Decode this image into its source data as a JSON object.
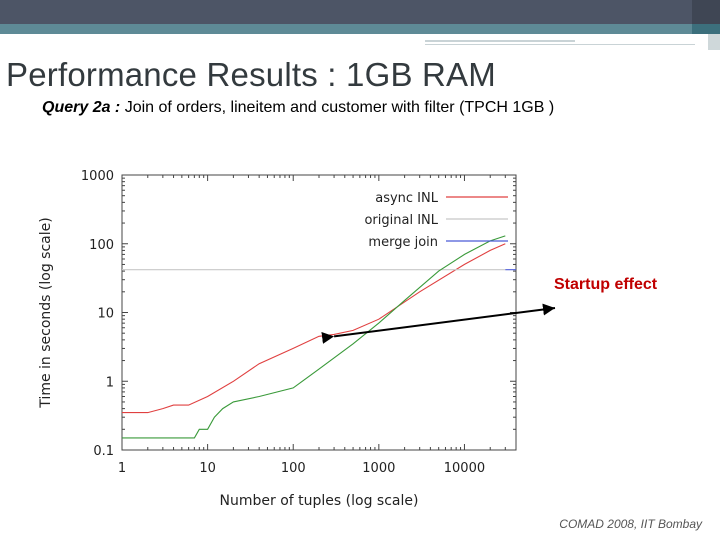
{
  "slide": {
    "title": "Performance Results : 1GB RAM",
    "subtitle_query": "Query 2a :",
    "subtitle_text": " Join of orders, lineitem and customer with filter  (TPCH 1GB )",
    "annotation": "Startup effect",
    "footer": "COMAD 2008, IIT Bombay",
    "colors": {
      "header_dark": "#4d5566",
      "header_teal": "#5e8a96",
      "annotation": "#c00000"
    }
  },
  "chart_data": {
    "type": "line",
    "title": "",
    "xlabel": "Number of tuples (log scale)",
    "ylabel": "Time in seconds (log scale)",
    "xscale": "log",
    "yscale": "log",
    "xlim": [
      1,
      40000
    ],
    "ylim": [
      0.1,
      1000
    ],
    "xticks": [
      "1",
      "10",
      "100",
      "1000",
      "10000"
    ],
    "yticks": [
      "1000",
      "100",
      "10",
      "1",
      "0.1"
    ],
    "grid": false,
    "legend_position": "top-right",
    "series": [
      {
        "name": "async INL",
        "color": "#e04040",
        "points": [
          [
            1,
            0.35
          ],
          [
            2,
            0.35
          ],
          [
            3,
            0.4
          ],
          [
            4,
            0.45
          ],
          [
            6,
            0.45
          ],
          [
            10,
            0.6
          ],
          [
            20,
            1.0
          ],
          [
            40,
            1.8
          ],
          [
            100,
            3.0
          ],
          [
            200,
            4.5
          ],
          [
            300,
            4.8
          ],
          [
            500,
            5.5
          ],
          [
            1000,
            8
          ],
          [
            3000,
            20
          ],
          [
            10000,
            50
          ],
          [
            20000,
            80
          ],
          [
            30000,
            100
          ]
        ]
      },
      {
        "name": "original INL",
        "color": "#c8c8c8",
        "points": [
          [
            1,
            42
          ],
          [
            30000,
            42
          ]
        ]
      },
      {
        "name": "merge join",
        "color": "#4a5ad8",
        "points": [
          [
            30000,
            42
          ],
          [
            40000,
            42
          ]
        ]
      },
      {
        "name": "",
        "color": "#3a9a3a",
        "points": [
          [
            1,
            0.15
          ],
          [
            7,
            0.15
          ],
          [
            8,
            0.2
          ],
          [
            10,
            0.2
          ],
          [
            12,
            0.3
          ],
          [
            15,
            0.4
          ],
          [
            20,
            0.5
          ],
          [
            40,
            0.6
          ],
          [
            100,
            0.8
          ],
          [
            200,
            1.5
          ],
          [
            500,
            3.5
          ],
          [
            1000,
            7
          ],
          [
            2000,
            15
          ],
          [
            5000,
            40
          ],
          [
            10000,
            70
          ],
          [
            20000,
            110
          ],
          [
            30000,
            130
          ]
        ]
      }
    ]
  }
}
